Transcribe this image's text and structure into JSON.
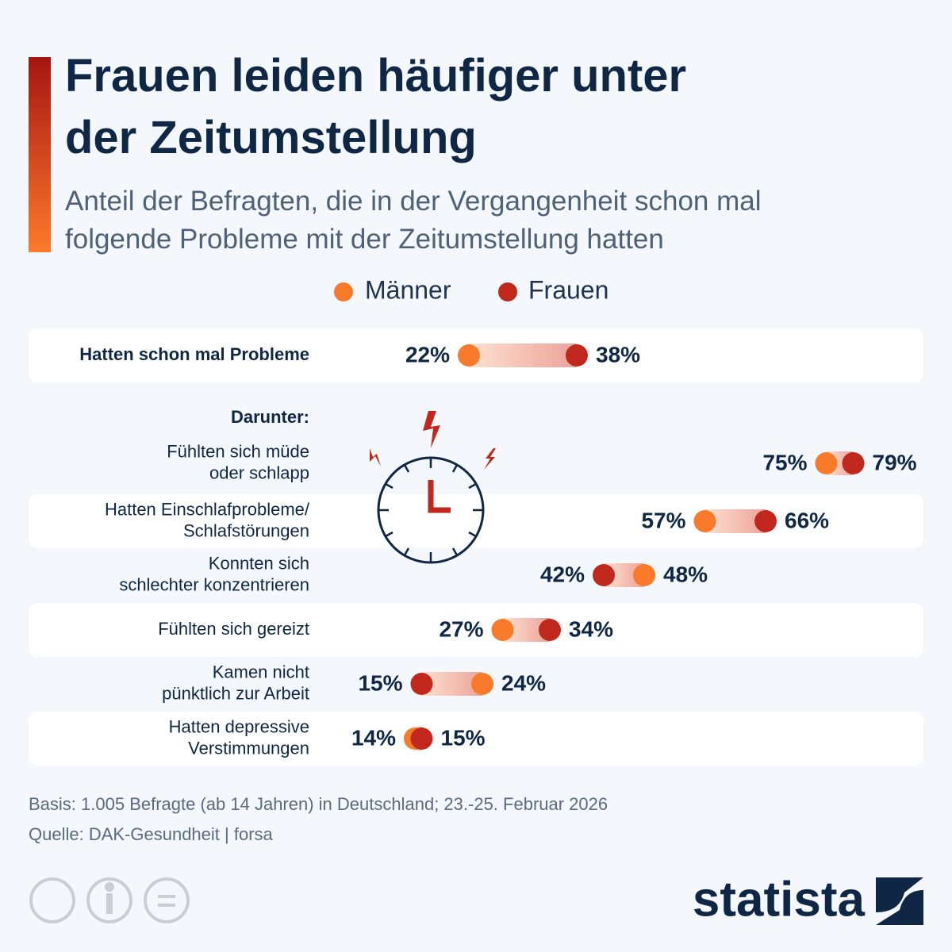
{
  "title": "Frauen leiden häufiger unter\nder Zeitumstellung",
  "subtitle": "Anteil der Befragten, die in der Vergangenheit schon mal\nfolgende Probleme mit der Zeitumstellung hatten",
  "chart_data": {
    "type": "dumbbell",
    "categories": [
      "Hatten schon mal Probleme",
      "Fühlten sich müde\noder schlapp",
      "Hatten Einschlafprobleme/\nSchlafstörungen",
      "Konnten sich\nschlechter konzentrieren",
      "Fühlten sich gereizt",
      "Kamen nicht\npünktlich zur Arbeit",
      "Hatten depressive\nVerstimmungen"
    ],
    "group_label": "Darunter:",
    "series": [
      {
        "name": "Männer",
        "color": "#f97a2a",
        "values": [
          22,
          75,
          57,
          48,
          27,
          24,
          14
        ],
        "value_labels": [
          "22%",
          "75%",
          "57%",
          "48%",
          "27%",
          "24%",
          "14%"
        ]
      },
      {
        "name": "Frauen",
        "color": "#c0281e",
        "values": [
          38,
          79,
          66,
          42,
          34,
          15,
          15
        ],
        "value_labels": [
          "38%",
          "79%",
          "66%",
          "42%",
          "34%",
          "15%",
          "15%"
        ]
      }
    ],
    "xlim": [
      0,
      90
    ]
  },
  "footer": {
    "basis": "Basis: 1.005 Befragte (ab 14 Jahren) in Deutschland; 23.-25. Februar 2026",
    "source": "Quelle: DAK-Gesundheit | forsa",
    "logo": "statista"
  }
}
